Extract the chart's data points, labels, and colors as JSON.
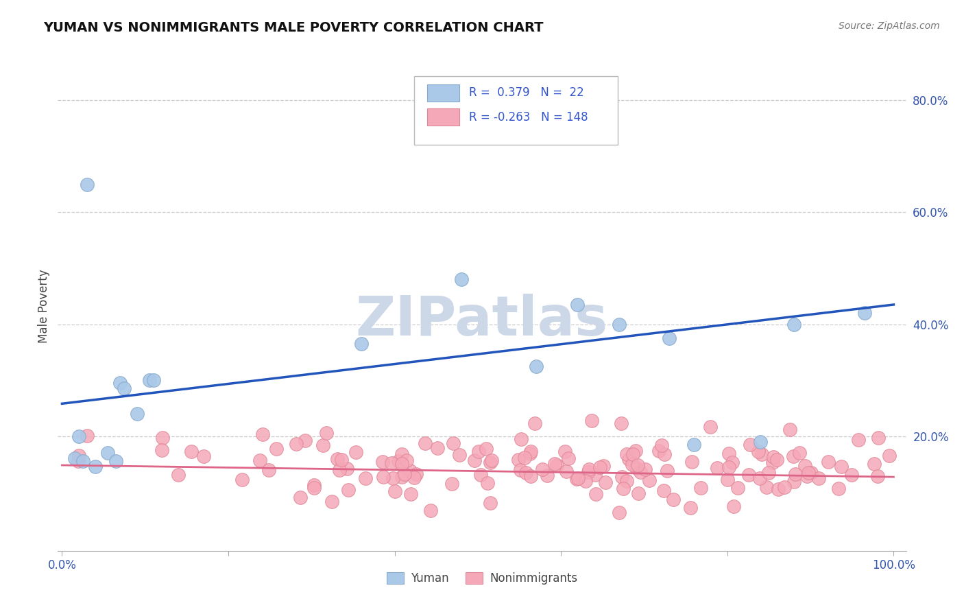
{
  "title": "YUMAN VS NONIMMIGRANTS MALE POVERTY CORRELATION CHART",
  "source_text": "Source: ZipAtlas.com",
  "ylabel": "Male Poverty",
  "xlim": [
    0.0,
    1.0
  ],
  "ylim": [
    0.0,
    0.87
  ],
  "ytick_vals": [
    0.2,
    0.4,
    0.6,
    0.8
  ],
  "ytick_labels": [
    "20.0%",
    "40.0%",
    "60.0%",
    "80.0%"
  ],
  "xtick_vals": [
    0.0,
    0.2,
    0.4,
    0.6,
    0.8,
    1.0
  ],
  "xtick_labels": [
    "0.0%",
    "",
    "",
    "",
    "",
    "100.0%"
  ],
  "grid_color": "#cccccc",
  "background_color": "#ffffff",
  "yuman_color": "#aac8e8",
  "yuman_edge_color": "#88aacc",
  "nonimm_color": "#f5a8b8",
  "nonimm_edge_color": "#e08898",
  "line_yuman_color": "#2255bb",
  "line_nonimm_color": "#dd6688",
  "R_yuman": 0.379,
  "N_yuman": 22,
  "R_nonimm": -0.263,
  "N_nonimm": 148,
  "yuman_x": [
    0.015,
    0.02,
    0.025,
    0.03,
    0.04,
    0.055,
    0.065,
    0.07,
    0.075,
    0.09,
    0.105,
    0.11,
    0.36,
    0.48,
    0.57,
    0.62,
    0.67,
    0.73,
    0.76,
    0.84,
    0.88,
    0.965
  ],
  "yuman_y": [
    0.16,
    0.2,
    0.155,
    0.65,
    0.145,
    0.17,
    0.155,
    0.295,
    0.285,
    0.24,
    0.3,
    0.3,
    0.365,
    0.48,
    0.325,
    0.435,
    0.4,
    0.375,
    0.185,
    0.19,
    0.4,
    0.42
  ],
  "watermark_text": "ZIPatlas",
  "watermark_color": "#ccd8e8",
  "legend_R_yuman_text": "R =  0.379   N =  22",
  "legend_R_nonimm_text": "R = -0.263   N = 148",
  "legend_text_color": "#3355cc",
  "axis_text_color": "#3355aa",
  "title_color": "#111111",
  "source_color": "#777777",
  "label_color": "#444444",
  "spine_color": "#aaaaaa"
}
